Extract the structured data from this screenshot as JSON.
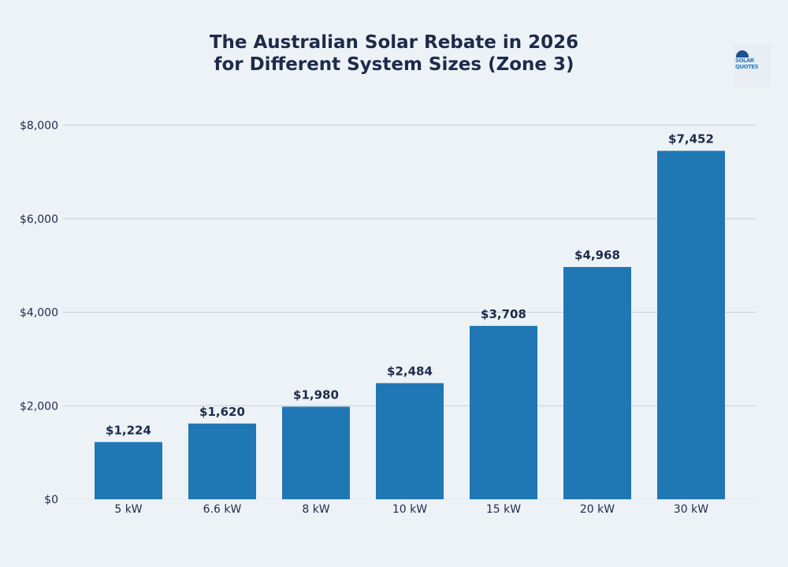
{
  "logo": {
    "text": "SOLAR QUOTES"
  },
  "chart_data": {
    "type": "bar",
    "title": "The Australian Solar Rebate in 2026\nfor Different System Sizes (Zone 3)",
    "title_lines": [
      "The Australian Solar Rebate in 2026",
      "for Different System Sizes (Zone 3)"
    ],
    "categories": [
      "5 kW",
      "6.6 kW",
      "8 kW",
      "10 kW",
      "15 kW",
      "20 kW",
      "30 kW"
    ],
    "values": [
      1224,
      1620,
      1980,
      2484,
      3708,
      4968,
      7452
    ],
    "data_labels": [
      "$1,224",
      "$1,620",
      "$1,980",
      "$2,484",
      "$3,708",
      "$4,968",
      "$7,452"
    ],
    "yticks": [
      0,
      2000,
      4000,
      6000,
      8000
    ],
    "ytick_labels": [
      "$0",
      "$2,000",
      "$4,000",
      "$6,000",
      "$8,000"
    ],
    "ylim": [
      0,
      8000
    ],
    "grid": true,
    "bar_color": "#1f77b4",
    "text_color": "#1e2a4a"
  }
}
